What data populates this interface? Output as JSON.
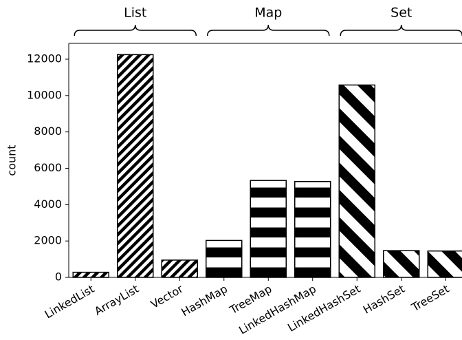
{
  "chart_data": {
    "type": "bar",
    "y_label": "count",
    "groups": [
      {
        "name": "List",
        "hatch": "//",
        "categories": [
          "LinkedList",
          "ArrayList",
          "Vector"
        ],
        "values": [
          280,
          12250,
          950
        ]
      },
      {
        "name": "Map",
        "hatch": "-",
        "categories": [
          "HashMap",
          "TreeMap",
          "LinkedHashMap"
        ],
        "values": [
          2030,
          5330,
          5270
        ]
      },
      {
        "name": "Set",
        "hatch": "\\",
        "categories": [
          "LinkedHashSet",
          "HashSet",
          "TreeSet"
        ],
        "values": [
          10580,
          1470,
          1450
        ]
      }
    ],
    "color": "#000000",
    "ylim": [
      0,
      12870
    ],
    "yticks": [
      0,
      2000,
      4000,
      6000,
      8000,
      10000,
      12000
    ]
  }
}
